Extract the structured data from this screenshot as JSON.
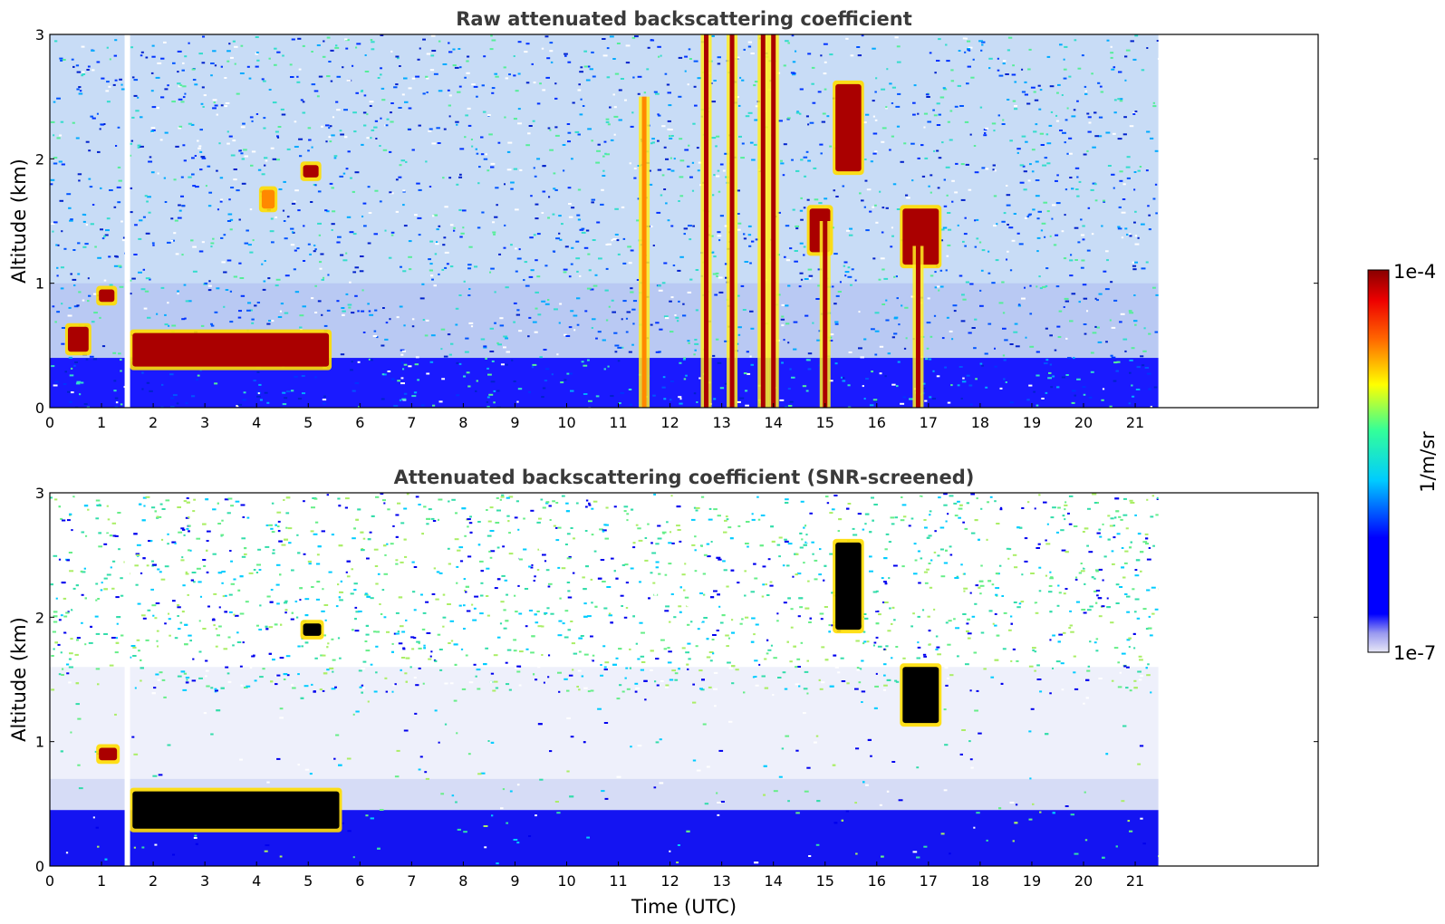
{
  "chart_data": [
    {
      "type": "heatmap",
      "title": "Raw attenuated backscattering coefficient",
      "xlabel": "",
      "ylabel": "Altitude (km)",
      "xlim": [
        0,
        24
      ],
      "ylim": [
        0,
        3
      ],
      "xticks": [
        "0",
        "1",
        "2",
        "3",
        "4",
        "5",
        "6",
        "7",
        "8",
        "9",
        "10",
        "11",
        "12",
        "13",
        "14",
        "15",
        "16",
        "17",
        "18",
        "19",
        "20",
        "21"
      ],
      "yticks": [
        "0",
        "1",
        "2",
        "3"
      ],
      "data_end_hour": 21.45,
      "gap_hour": 1.5,
      "boundary_layer_km": 0.4,
      "features": [
        {
          "kind": "aerosol/cloud layer",
          "t_start": 1.6,
          "t_end": 5.4,
          "alt_km": [
            0.33,
            0.6
          ],
          "level": "high"
        },
        {
          "kind": "aerosol layer",
          "t_start": 0.35,
          "t_end": 0.75,
          "alt_km": [
            0.45,
            0.65
          ],
          "level": "high"
        },
        {
          "kind": "cloud",
          "t_start": 0.95,
          "t_end": 1.25,
          "alt_km": [
            0.85,
            0.95
          ],
          "level": "high"
        },
        {
          "kind": "cloud",
          "t_start": 4.9,
          "t_end": 5.2,
          "alt_km": [
            1.85,
            1.95
          ],
          "level": "high"
        },
        {
          "kind": "cloud",
          "t_start": 4.1,
          "t_end": 4.35,
          "alt_km": [
            1.6,
            1.75
          ],
          "level": "medium"
        },
        {
          "kind": "cloud",
          "t_start": 14.7,
          "t_end": 15.1,
          "alt_km": [
            1.25,
            1.6
          ],
          "level": "high"
        },
        {
          "kind": "cloud",
          "t_start": 15.2,
          "t_end": 15.7,
          "alt_km": [
            1.9,
            2.6
          ],
          "level": "high"
        },
        {
          "kind": "cloud",
          "t_start": 16.5,
          "t_end": 17.2,
          "alt_km": [
            1.15,
            1.6
          ],
          "level": "high"
        },
        {
          "kind": "precipitation column",
          "t_center": 12.7,
          "alt_km": [
            0,
            3
          ],
          "level": "high"
        },
        {
          "kind": "precipitation column",
          "t_center": 13.2,
          "alt_km": [
            0,
            3
          ],
          "level": "high"
        },
        {
          "kind": "precipitation column",
          "t_center": 13.8,
          "alt_km": [
            0,
            3
          ],
          "level": "high"
        },
        {
          "kind": "precipitation column",
          "t_center": 14.0,
          "alt_km": [
            0,
            3
          ],
          "level": "high"
        },
        {
          "kind": "precipitation column",
          "t_center": 15.0,
          "alt_km": [
            0,
            1.5
          ],
          "level": "high"
        },
        {
          "kind": "precipitation column",
          "t_center": 16.8,
          "alt_km": [
            0,
            1.3
          ],
          "level": "high"
        },
        {
          "kind": "precipitation column",
          "t_center": 11.5,
          "alt_km": [
            0,
            2.5
          ],
          "level": "medium"
        }
      ]
    },
    {
      "type": "heatmap",
      "title": "Attenuated backscattering coefficient (SNR-screened)",
      "xlabel": "Time (UTC)",
      "ylabel": "Altitude (km)",
      "xlim": [
        0,
        24
      ],
      "ylim": [
        0,
        3
      ],
      "xticks": [
        "0",
        "1",
        "2",
        "3",
        "4",
        "5",
        "6",
        "7",
        "8",
        "9",
        "10",
        "11",
        "12",
        "13",
        "14",
        "15",
        "16",
        "17",
        "18",
        "19",
        "20",
        "21"
      ],
      "yticks": [
        "0",
        "1",
        "2",
        "3"
      ],
      "data_end_hour": 21.45,
      "gap_hour": 1.5,
      "boundary_layer_km": 0.45,
      "features": [
        {
          "kind": "aerosol/cloud layer",
          "t_start": 1.6,
          "t_end": 5.6,
          "alt_km": [
            0.3,
            0.6
          ],
          "level": "saturated"
        },
        {
          "kind": "cloud",
          "t_start": 0.95,
          "t_end": 1.3,
          "alt_km": [
            0.85,
            0.95
          ],
          "level": "high"
        },
        {
          "kind": "cloud",
          "t_start": 4.9,
          "t_end": 5.25,
          "alt_km": [
            1.85,
            1.95
          ],
          "level": "saturated"
        },
        {
          "kind": "cloud",
          "t_start": 15.2,
          "t_end": 15.7,
          "alt_km": [
            1.9,
            2.6
          ],
          "level": "saturated"
        },
        {
          "kind": "cloud",
          "t_start": 16.5,
          "t_end": 17.2,
          "alt_km": [
            1.15,
            1.6
          ],
          "level": "saturated"
        }
      ]
    }
  ],
  "colorbar": {
    "min_label": "1e-7",
    "max_label": "1e-4",
    "unit_label": "1/m/sr",
    "scale": "log",
    "colormap": "jet"
  },
  "colors": {
    "background": "#ffffff",
    "title": "#3a3a3a",
    "saturated": "#000000"
  }
}
